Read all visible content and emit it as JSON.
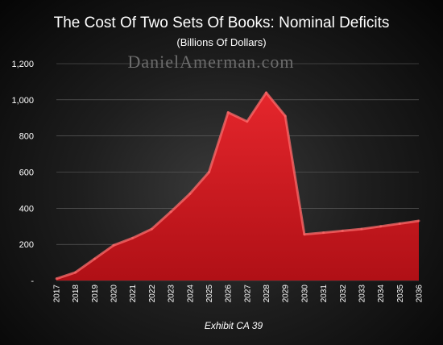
{
  "chart_data": {
    "type": "area",
    "title": "The Cost Of Two Sets Of Books: Nominal Deficits",
    "subtitle": "(Billions Of Dollars)",
    "watermark": "DanielAmerman.com",
    "caption": "Exhibit CA 39",
    "xlabel": "",
    "ylabel": "",
    "ylim": [
      0,
      1200
    ],
    "yticks": [
      {
        "value": 0,
        "label": "-"
      },
      {
        "value": 200,
        "label": "200"
      },
      {
        "value": 400,
        "label": "400"
      },
      {
        "value": 600,
        "label": "600"
      },
      {
        "value": 800,
        "label": "800"
      },
      {
        "value": 1000,
        "label": "1,000"
      },
      {
        "value": 1200,
        "label": "1,200"
      }
    ],
    "grid": true,
    "x": [
      "2017",
      "2018",
      "2019",
      "2020",
      "2021",
      "2022",
      "2023",
      "2024",
      "2025",
      "2026",
      "2027",
      "2028",
      "2029",
      "2030",
      "2031",
      "2032",
      "2033",
      "2034",
      "2035",
      "2036"
    ],
    "series": [
      {
        "values": [
          10,
          45,
          120,
          195,
          235,
          285,
          380,
          480,
          600,
          930,
          880,
          1040,
          910,
          255,
          265,
          275,
          285,
          300,
          315,
          330
        ]
      }
    ],
    "colors": {
      "fill": "#c8161d",
      "fill_light": "#e33a3f",
      "edge": "#ff6b6b"
    }
  }
}
